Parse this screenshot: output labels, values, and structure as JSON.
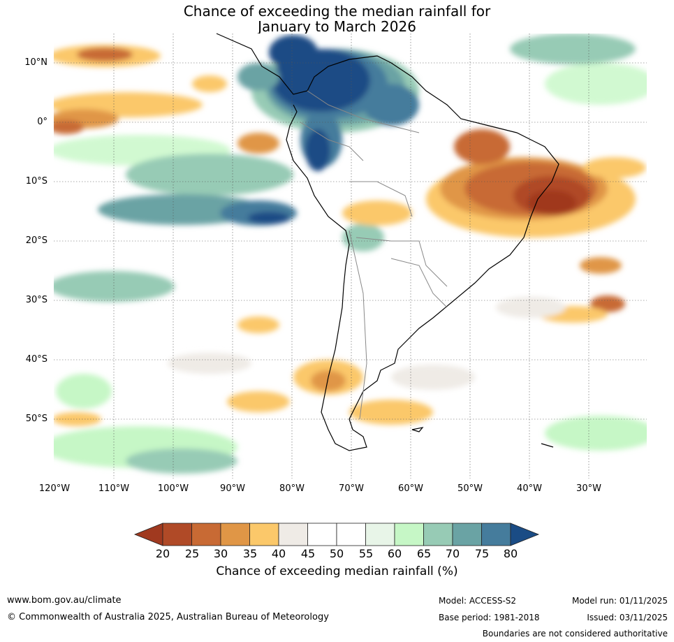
{
  "title": {
    "line1": "Chance of exceeding the median rainfall for",
    "line2": "January to March 2026"
  },
  "map": {
    "lat_labels": [
      "10°N",
      "0°",
      "10°S",
      "20°S",
      "30°S",
      "40°S",
      "50°S"
    ],
    "lon_labels": [
      "120°W",
      "110°W",
      "100°W",
      "90°W",
      "80°W",
      "70°W",
      "60°W",
      "50°W",
      "40°W",
      "30°W"
    ]
  },
  "colorbar": {
    "ticks": [
      "20",
      "25",
      "30",
      "35",
      "40",
      "45",
      "50",
      "55",
      "60",
      "65",
      "70",
      "75",
      "80"
    ],
    "colors": [
      "#a0391f",
      "#b04a27",
      "#c86a34",
      "#e09646",
      "#fbc86a",
      "#efebe6",
      "#ffffff",
      "#ffffff",
      "#e8f5e8",
      "#c6f7c6",
      "#97cbb5",
      "#6aa3a4",
      "#457c9c",
      "#1a4c85"
    ],
    "label": "Chance of exceeding median rainfall (%)"
  },
  "footer": {
    "url": "www.bom.gov.au/climate",
    "copyright": "© Commonwealth of Australia 2025, Australian Bureau of Meteorology",
    "model": "Model: ACCESS-S2",
    "base_period": "Base period: 1981-2018",
    "model_run": "Model run: 01/11/2025",
    "issued": "Issued: 03/11/2025",
    "disclaimer": "Boundaries are not considered authoritative"
  }
}
